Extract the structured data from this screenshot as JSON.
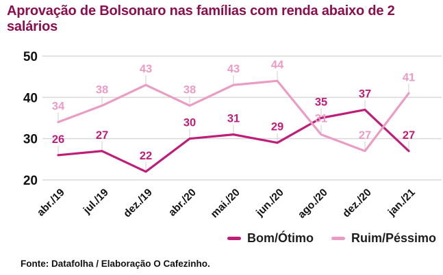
{
  "title": "Aprovação de Bolsonaro nas famílias com renda abaixo de 2 salários",
  "source": "Fonte: Datafolha / Elaboração O Cafezinho.",
  "colors": {
    "title": "#8b0e4e",
    "bom_otimo": "#be1e78",
    "ruim_pessimo": "#ea9cc5",
    "grid": "#d8d8d8",
    "leader": "#cfcfcf",
    "axis_text": "#111111",
    "legend_text": "#1d1d1d",
    "background": "#ffffff"
  },
  "legend": {
    "items": [
      {
        "label": "Bom/Ótimo",
        "color": "#be1e78"
      },
      {
        "label": "Ruim/Péssimo",
        "color": "#ea9cc5"
      }
    ]
  },
  "chart_data": {
    "type": "line",
    "title": "Aprovação de Bolsonaro nas famílias com renda abaixo de 2 salários",
    "categories": [
      "abr./19",
      "jul./19",
      "dez./19",
      "abr./20",
      "mai./20",
      "jun./20",
      "ago./20",
      "dez./20",
      "jan./21"
    ],
    "series": [
      {
        "name": "Bom/Ótimo",
        "color": "#be1e78",
        "values": [
          26,
          27,
          22,
          30,
          31,
          29,
          35,
          37,
          27
        ]
      },
      {
        "name": "Ruim/Péssimo",
        "color": "#ea9cc5",
        "values": [
          34,
          38,
          43,
          38,
          43,
          44,
          31,
          27,
          41
        ]
      }
    ],
    "yticks": [
      20,
      30,
      40,
      50
    ],
    "ylim": [
      20,
      50
    ],
    "grid": true,
    "data_labels": true,
    "legend_position": "bottom-right",
    "xlabel": "",
    "ylabel": ""
  }
}
